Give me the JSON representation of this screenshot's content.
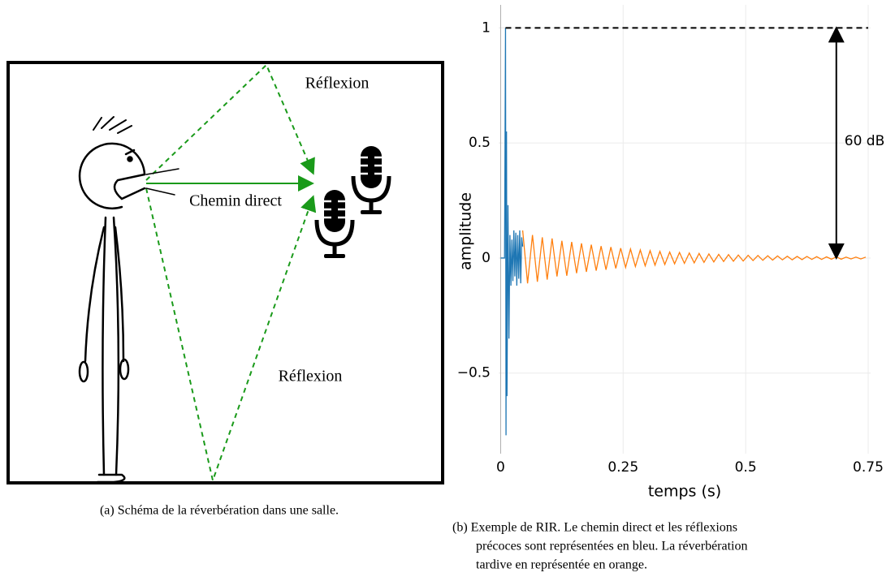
{
  "subfigure_a": {
    "labels": [
      "Réflexion",
      "Chemin direct",
      "Réflexion"
    ],
    "caption": "(a) Schéma de la réverbération dans une salle."
  },
  "chart_data": {
    "type": "line",
    "x_label": "temps (s)",
    "y_label": "amplitude",
    "xlim": [
      -0.004,
      0.755
    ],
    "ylim": [
      -0.85,
      1.1
    ],
    "xticks": [
      0,
      0.25,
      0.5,
      0.75
    ],
    "yticks": [
      {
        "value": -0.5,
        "label": "−0.5"
      },
      0,
      0.5,
      1
    ],
    "grid": true,
    "series": [
      {
        "color": "#1f77b4",
        "x": [
          0,
          0.008,
          0.009,
          0.01,
          0.011,
          0.012,
          0.013,
          0.015,
          0.017,
          0.019,
          0.021,
          0.023,
          0.025,
          0.027,
          0.029,
          0.031,
          0.033,
          0.035,
          0.037,
          0.039,
          0.041,
          0.043,
          0.045
        ],
        "values": [
          0,
          0,
          0.5,
          1,
          -0.77,
          0.55,
          -0.6,
          0.23,
          -0.35,
          0.1,
          -0.12,
          0.08,
          -0.1,
          0.12,
          -0.08,
          0.11,
          -0.12,
          0.1,
          -0.09,
          0.12,
          -0.11,
          0.09,
          0.05
        ]
      },
      {
        "color": "#ff7f0e",
        "x": [
          0.045,
          0.055,
          0.065,
          0.075,
          0.085,
          0.095,
          0.105,
          0.115,
          0.125,
          0.135,
          0.145,
          0.155,
          0.165,
          0.175,
          0.185,
          0.195,
          0.205,
          0.215,
          0.225,
          0.235,
          0.245,
          0.255,
          0.265,
          0.275,
          0.285,
          0.295,
          0.305,
          0.315,
          0.325,
          0.335,
          0.345,
          0.355,
          0.365,
          0.375,
          0.385,
          0.395,
          0.405,
          0.415,
          0.425,
          0.435,
          0.445,
          0.455,
          0.465,
          0.475,
          0.485,
          0.495,
          0.505,
          0.515,
          0.525,
          0.535,
          0.545,
          0.555,
          0.565,
          0.575,
          0.585,
          0.595,
          0.605,
          0.615,
          0.625,
          0.635,
          0.645,
          0.655,
          0.665,
          0.675,
          0.685,
          0.695,
          0.705,
          0.715,
          0.725,
          0.735,
          0.745
        ],
        "values": [
          0.12,
          -0.11,
          0.1,
          -0.103,
          0.09,
          -0.094,
          0.085,
          -0.08,
          0.075,
          -0.077,
          0.07,
          -0.066,
          0.064,
          -0.06,
          0.058,
          -0.055,
          0.052,
          -0.051,
          0.048,
          -0.045,
          0.043,
          -0.041,
          0.039,
          -0.037,
          0.035,
          -0.034,
          0.032,
          -0.031,
          0.029,
          -0.028,
          0.026,
          -0.025,
          0.024,
          -0.023,
          0.022,
          -0.021,
          0.02,
          -0.019,
          0.018,
          -0.017,
          0.016,
          -0.015,
          0.015,
          -0.014,
          0.013,
          -0.013,
          0.012,
          -0.011,
          0.011,
          -0.01,
          0.01,
          -0.009,
          0.009,
          -0.008,
          0.008,
          -0.008,
          0.007,
          -0.007,
          0.007,
          -0.006,
          0.006,
          -0.006,
          0.005,
          -0.005,
          0.005,
          -0.005,
          0.004,
          -0.004,
          0.004,
          -0.004,
          0.004
        ]
      }
    ],
    "reference_line": {
      "y": 1,
      "x": [
        0.01,
        0.75
      ]
    },
    "annotation": {
      "text": "60 dB",
      "x": 0.685,
      "y_from": 1,
      "y_to": 0
    },
    "caption": [
      "(b) Exemple de RIR. Le chemin direct et les réflexions",
      "précoces sont représentées en bleu. La réverbération",
      "tardive en représentée en orange."
    ]
  }
}
